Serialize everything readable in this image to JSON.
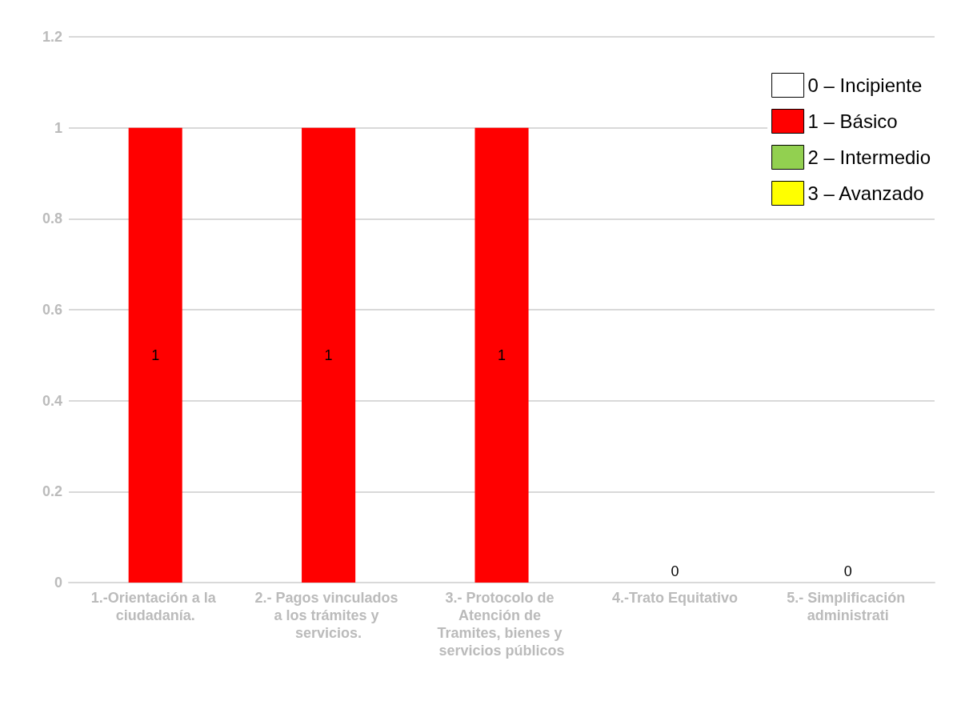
{
  "chart_data": {
    "type": "bar",
    "categories": [
      "1.-Orientación a la ciudadanía.",
      "2.- Pagos vinculados a los trámites y servicios.",
      "3.- Protocolo de Atención de Tramites, bienes y servicios públicos",
      "4.-Trato Equitativo",
      "5.- Simplificación administrati"
    ],
    "series": [
      {
        "name": "0 – Incipiente",
        "color": "#ffffff",
        "values": [
          null,
          null,
          null,
          null,
          null
        ]
      },
      {
        "name": "1 – Básico",
        "color": "#ff0000",
        "values": [
          1,
          1,
          1,
          0,
          0
        ]
      },
      {
        "name": "2 – Intermedio",
        "color": "#92d050",
        "values": [
          null,
          null,
          null,
          null,
          null
        ]
      },
      {
        "name": "3 – Avanzado",
        "color": "#ffff00",
        "values": [
          null,
          null,
          null,
          null,
          null
        ]
      }
    ],
    "stacked": true,
    "data_labels": true,
    "ylim": [
      0,
      1.2
    ],
    "yticks": [
      0,
      0.2,
      0.4,
      0.6,
      0.8,
      1,
      1.2
    ],
    "grid": "y",
    "legend": "top right"
  }
}
